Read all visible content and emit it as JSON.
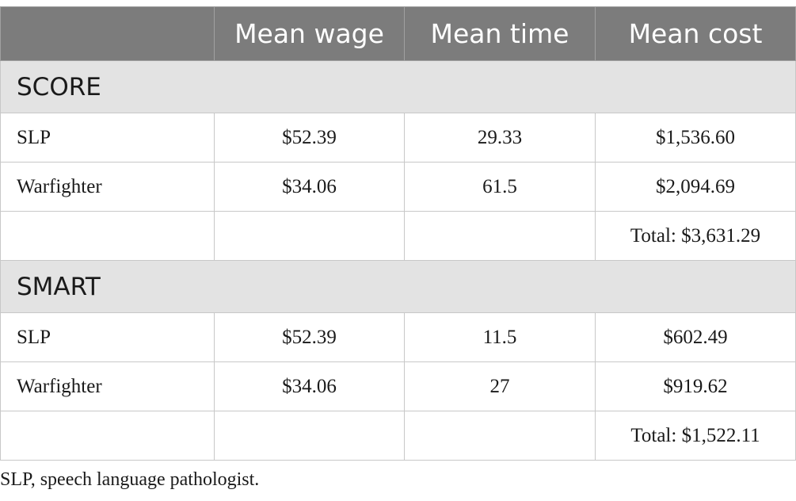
{
  "table": {
    "headers": [
      "",
      "Mean wage",
      "Mean time",
      "Mean cost"
    ],
    "sections": [
      {
        "name": "SCORE",
        "rows": [
          {
            "label": "SLP",
            "wage": "$52.39",
            "time": "29.33",
            "cost": "$1,536.60"
          },
          {
            "label": "Warfighter",
            "wage": "$34.06",
            "time": "61.5",
            "cost": "$2,094.69"
          },
          {
            "label": "",
            "wage": "",
            "time": "",
            "cost": "Total: $3,631.29"
          }
        ]
      },
      {
        "name": "SMART",
        "rows": [
          {
            "label": "SLP",
            "wage": "$52.39",
            "time": "11.5",
            "cost": "$602.49"
          },
          {
            "label": "Warfighter",
            "wage": "$34.06",
            "time": "27",
            "cost": "$919.62"
          },
          {
            "label": "",
            "wage": "",
            "time": "",
            "cost": "Total: $1,522.11"
          }
        ]
      }
    ]
  },
  "footnote": "SLP, speech language pathologist.",
  "colors": {
    "header_bg": "#7c7c7c",
    "section_bg": "#e3e3e3",
    "border": "#c8c8c8"
  }
}
